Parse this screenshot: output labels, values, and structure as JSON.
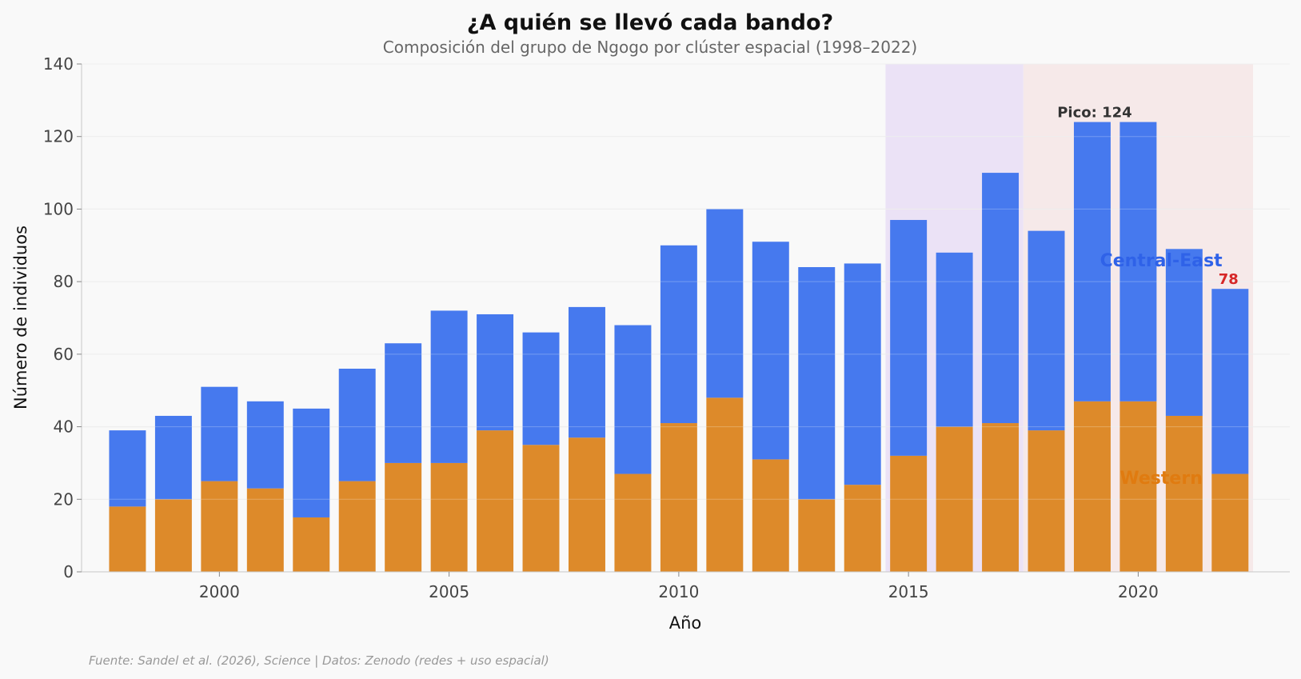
{
  "chart_data": {
    "type": "bar",
    "stacked": true,
    "title": "¿A quién se llevó cada bando?",
    "subtitle": "Composición del grupo de Ngogo por clúster espacial (1998–2022)",
    "xlabel": "Año",
    "ylabel": "Número de individuos",
    "x": [
      1998,
      1999,
      2000,
      2001,
      2002,
      2003,
      2004,
      2005,
      2006,
      2007,
      2008,
      2009,
      2010,
      2011,
      2012,
      2013,
      2014,
      2015,
      2016,
      2017,
      2018,
      2019,
      2020,
      2021,
      2022
    ],
    "series": [
      {
        "name": "Western",
        "color": "#dd8a2a",
        "values": [
          18,
          20,
          25,
          23,
          15,
          25,
          30,
          30,
          39,
          35,
          37,
          27,
          41,
          48,
          31,
          20,
          24,
          32,
          40,
          41,
          39,
          47,
          47,
          43,
          27
        ]
      },
      {
        "name": "Central-East",
        "color": "#4679ee",
        "values": [
          21,
          23,
          26,
          24,
          30,
          31,
          33,
          42,
          32,
          31,
          36,
          41,
          49,
          52,
          60,
          64,
          61,
          65,
          48,
          69,
          55,
          77,
          77,
          46,
          51
        ]
      }
    ],
    "totals": [
      39,
      43,
      51,
      47,
      45,
      56,
      63,
      72,
      71,
      66,
      73,
      68,
      90,
      100,
      91,
      84,
      85,
      97,
      88,
      110,
      94,
      124,
      124,
      89,
      78
    ],
    "xticks": [
      2000,
      2005,
      2010,
      2015,
      2020
    ],
    "yticks": [
      0,
      20,
      40,
      60,
      80,
      100,
      120,
      140
    ],
    "ylim": [
      0,
      140
    ],
    "xlim": [
      1997,
      2023.3
    ],
    "grid": true,
    "shaded_regions": [
      {
        "from": 2014.5,
        "to": 2017.5,
        "color": "#ebe2f6"
      },
      {
        "from": 2017.5,
        "to": 2022.5,
        "color": "#f6e9e9"
      }
    ],
    "annotations": [
      {
        "text": "Pico: 124",
        "x": 2019,
        "y": 124,
        "color": "#333333"
      },
      {
        "text": "78",
        "x": 2022,
        "y": 78,
        "color": "#d62728"
      }
    ],
    "series_labels": [
      {
        "text": "Central-East",
        "x": 2020.5,
        "y": 86,
        "color": "#2f62e8"
      },
      {
        "text": "Western",
        "x": 2020.5,
        "y": 26,
        "color": "#e07b10"
      }
    ],
    "source": "Fuente: Sandel et al. (2026), Science | Datos: Zenodo (redes + uso espacial)"
  }
}
